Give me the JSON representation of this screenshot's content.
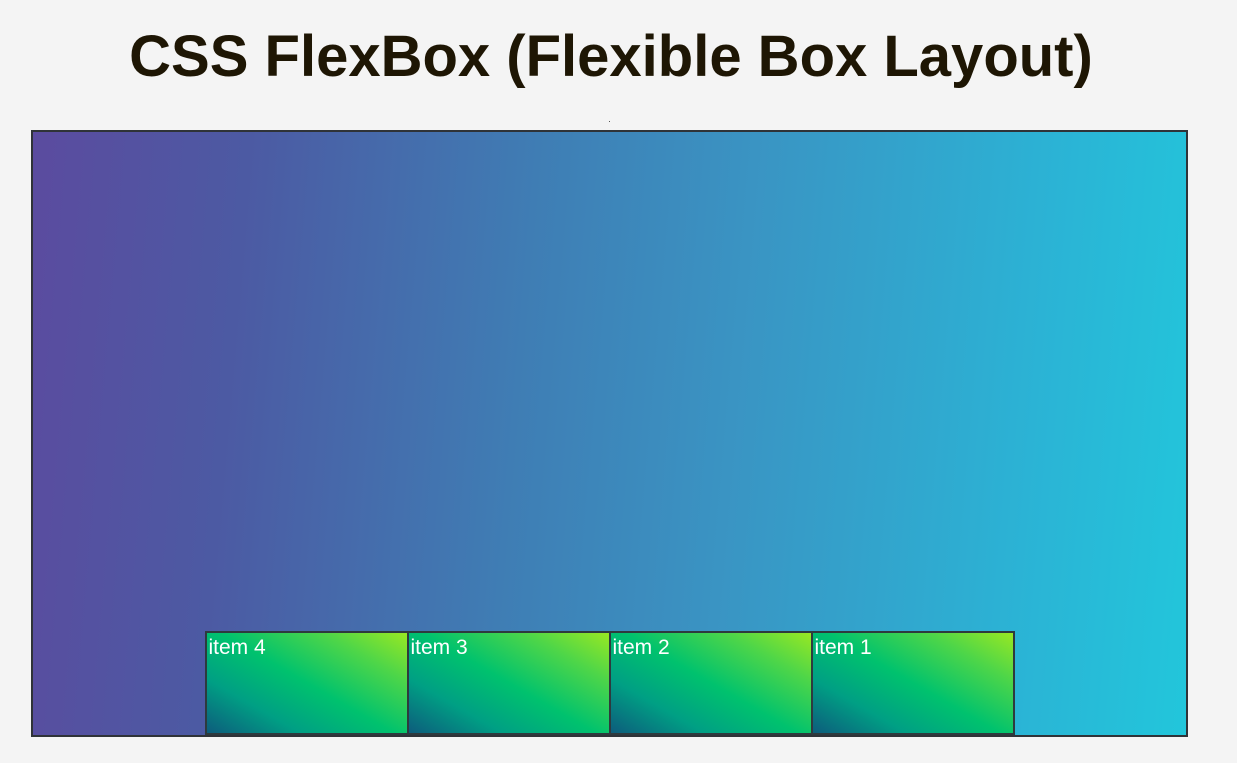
{
  "page": {
    "title": "CSS FlexBox (Flexible Box Layout)"
  },
  "flex_demo": {
    "items": [
      {
        "label": "item 1"
      },
      {
        "label": "item 2"
      },
      {
        "label": "item 3"
      },
      {
        "label": "item 4"
      }
    ]
  },
  "colors": {
    "page_background": "#f4f4f4",
    "title_text": "#1e1604",
    "container_gradient_start": "#5b4b9f",
    "container_gradient_end": "#22c6db",
    "item_gradient_start": "#0d5c7c",
    "item_gradient_mid": "#00c26e",
    "item_gradient_end": "#98e823",
    "item_text": "#ffffff",
    "border": "#2f3338"
  }
}
